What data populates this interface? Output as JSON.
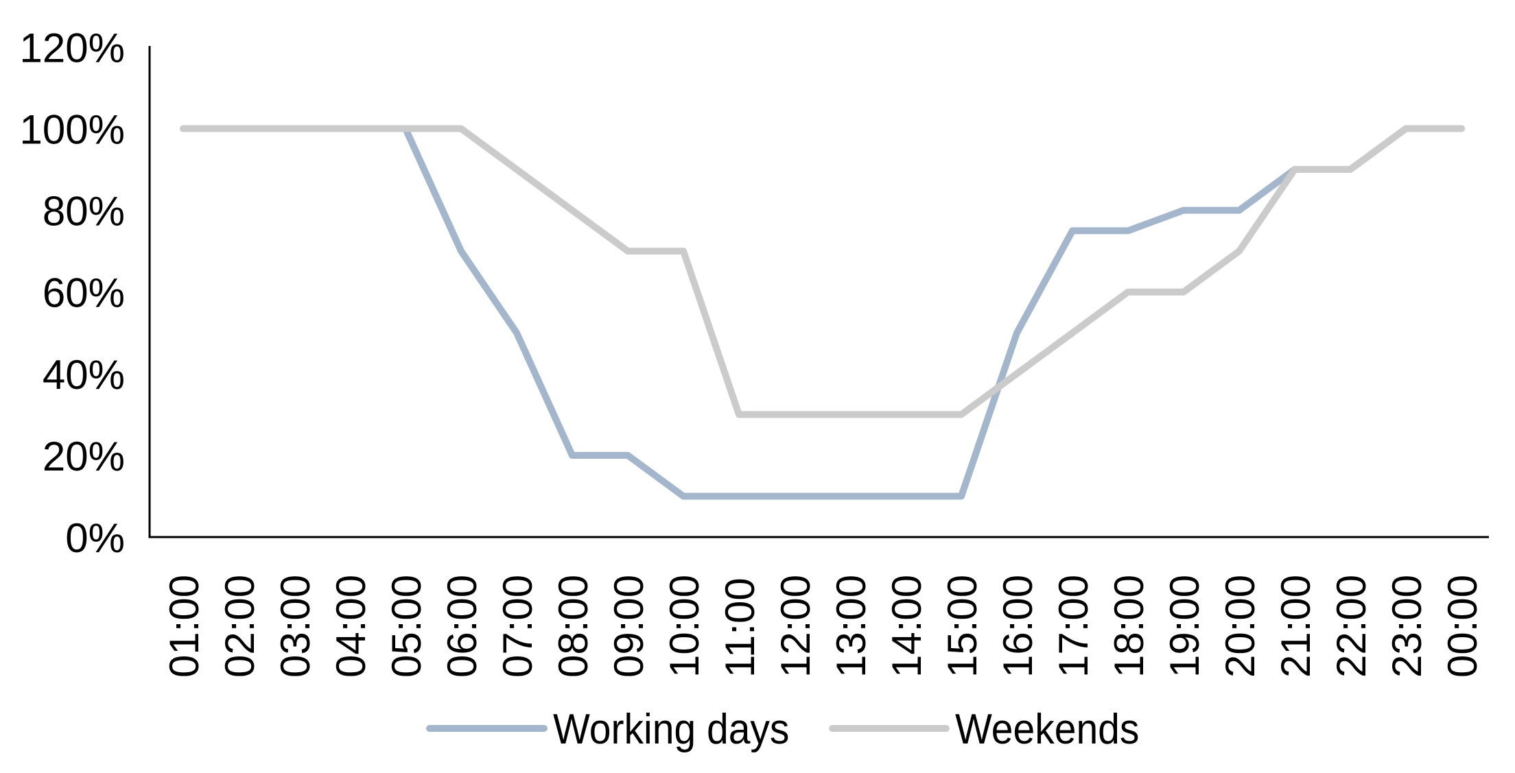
{
  "chart_data": {
    "type": "line",
    "title": "",
    "xlabel": "",
    "ylabel": "",
    "categories": [
      "01:00",
      "02:00",
      "03:00",
      "04:00",
      "05:00",
      "06:00",
      "07:00",
      "08:00",
      "09:00",
      "10:00",
      "11:00",
      "12:00",
      "13:00",
      "14:00",
      "15:00",
      "16:00",
      "17:00",
      "18:00",
      "19:00",
      "20:00",
      "21:00",
      "22:00",
      "23:00",
      "00:00"
    ],
    "series": [
      {
        "name": "Working days",
        "color": "#a4b6cb",
        "values": [
          100,
          100,
          100,
          100,
          100,
          70,
          50,
          20,
          20,
          10,
          10,
          10,
          10,
          10,
          10,
          50,
          75,
          75,
          80,
          80,
          90,
          90,
          100,
          100
        ]
      },
      {
        "name": "Weekends",
        "color": "#cbcbcb",
        "values": [
          100,
          100,
          100,
          100,
          100,
          100,
          90,
          80,
          70,
          70,
          30,
          30,
          30,
          30,
          30,
          40,
          50,
          60,
          60,
          70,
          90,
          90,
          100,
          100
        ]
      }
    ],
    "y_ticks": [
      "120%",
      "100%",
      "80%",
      "60%",
      "40%",
      "20%",
      "0%"
    ],
    "ylim": [
      0,
      120
    ],
    "y_unit": "%",
    "grid": false,
    "legend_position": "bottom",
    "axis_color": "#000000",
    "background_color": "#ffffff"
  }
}
